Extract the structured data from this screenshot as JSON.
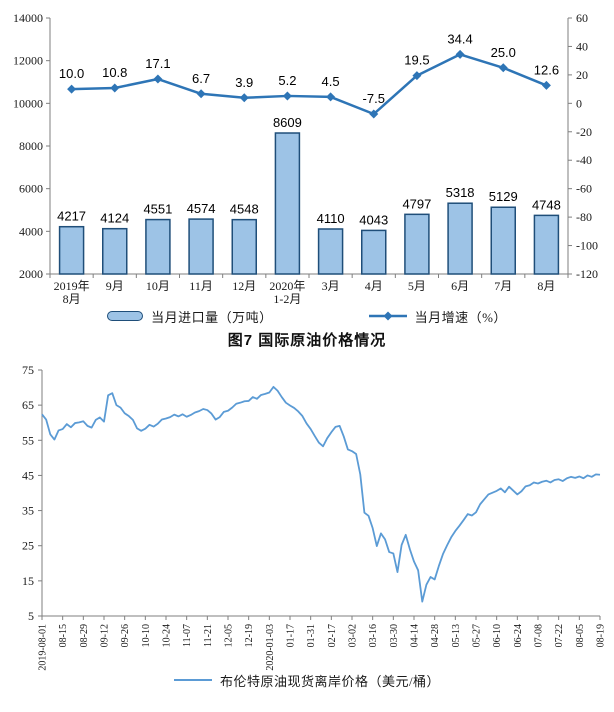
{
  "colors": {
    "axis": "#7f7f7f",
    "text": "#1a1a1a"
  },
  "chart_data": [
    {
      "type": "bar-line-combo",
      "categories": [
        "2019年\n8月",
        "9月",
        "10月",
        "11月",
        "12月",
        "2020年\n1-2月",
        "3月",
        "4月",
        "5月",
        "6月",
        "7月",
        "8月"
      ],
      "left_axis": {
        "min": 2000,
        "max": 14000,
        "step": 2000
      },
      "right_axis": {
        "min": -120,
        "max": 60,
        "step": 20
      },
      "legend_position": "bottom",
      "grid": "off",
      "series": [
        {
          "name": "当月进口量（万吨）",
          "type": "bar",
          "axis": "left",
          "color": "#9DC3E6",
          "border_color": "#1F4E79",
          "values": [
            4217,
            4124,
            4551,
            4574,
            4548,
            8609,
            4110,
            4043,
            4797,
            5318,
            5129,
            4748
          ],
          "labels": [
            "4217",
            "4124",
            "4551",
            "4574",
            "4548",
            "8609",
            "4110",
            "4043",
            "4797",
            "5318",
            "5129",
            "4748"
          ]
        },
        {
          "name": "当月增速（%）",
          "type": "line",
          "axis": "right",
          "color": "#2E75B6",
          "marker": "diamond",
          "values": [
            10.0,
            10.8,
            17.1,
            6.7,
            3.9,
            5.2,
            4.5,
            -7.5,
            19.5,
            34.4,
            25.0,
            12.6
          ],
          "labels": [
            "10.0",
            "10.8",
            "17.1",
            "6.7",
            "3.9",
            "5.2",
            "4.5",
            "-7.5",
            "19.5",
            "34.4",
            "25.0",
            "12.6"
          ]
        }
      ]
    },
    {
      "type": "line",
      "title": "图7 国际原油价格情况",
      "y_axis": {
        "min": 5,
        "max": 75,
        "step": 10
      },
      "legend_position": "bottom",
      "grid": "off",
      "x_tick_labels": [
        "2019-08-01",
        "08-15",
        "08-29",
        "09-12",
        "09-26",
        "10-10",
        "10-24",
        "11-07",
        "11-21",
        "12-05",
        "12-19",
        "2020-01-03",
        "01-17",
        "01-31",
        "02-17",
        "03-02",
        "03-16",
        "03-30",
        "04-14",
        "04-28",
        "05-13",
        "05-27",
        "06-10",
        "06-24",
        "07-08",
        "07-22",
        "08-05",
        "08-19"
      ],
      "series": [
        {
          "name": "布伦特原油现货离岸价格（美元/桶）",
          "color": "#5B9BD5",
          "values": [
            62.4,
            60.9,
            56.7,
            55.2,
            57.8,
            58.2,
            59.6,
            58.7,
            59.9,
            60.1,
            60.4,
            59.1,
            58.6,
            60.8,
            61.5,
            60.3,
            67.8,
            68.4,
            65.0,
            64.3,
            62.7,
            61.9,
            60.8,
            58.4,
            57.7,
            58.3,
            59.4,
            58.9,
            59.7,
            60.9,
            61.2,
            61.6,
            62.3,
            61.8,
            62.4,
            61.7,
            62.2,
            62.9,
            63.3,
            63.9,
            63.6,
            62.6,
            60.9,
            61.6,
            63.1,
            63.4,
            64.3,
            65.4,
            65.7,
            66.1,
            66.2,
            67.3,
            66.8,
            67.9,
            68.2,
            68.6,
            70.2,
            69.1,
            67.3,
            65.7,
            64.9,
            64.2,
            63.2,
            61.9,
            59.8,
            58.2,
            56.2,
            54.3,
            53.3,
            55.6,
            57.3,
            58.8,
            59.1,
            56.1,
            52.4,
            51.9,
            51.1,
            45.3,
            34.4,
            33.5,
            30.0,
            24.9,
            28.5,
            26.8,
            23.2,
            22.8,
            17.5,
            25.2,
            28.1,
            24.0,
            20.5,
            18.0,
            9.1,
            13.9,
            16.1,
            15.4,
            19.2,
            22.6,
            25.1,
            27.4,
            29.2,
            30.7,
            32.3,
            34.0,
            33.6,
            34.5,
            36.8,
            38.2,
            39.6,
            40.1,
            40.6,
            41.3,
            40.2,
            41.8,
            40.7,
            39.6,
            40.5,
            41.9,
            42.2,
            43.0,
            42.7,
            43.2,
            43.5,
            43.0,
            43.7,
            43.9,
            43.4,
            44.2,
            44.6,
            44.3,
            44.7,
            44.2,
            45.0,
            44.6,
            45.3,
            45.2
          ]
        }
      ]
    }
  ]
}
